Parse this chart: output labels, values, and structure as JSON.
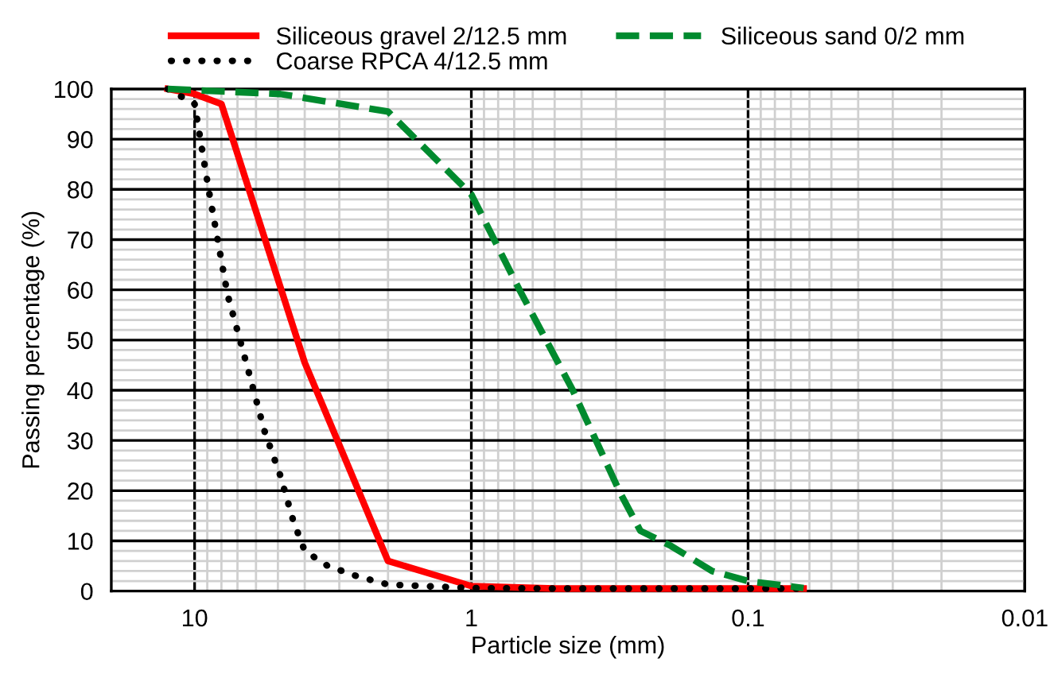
{
  "chart_data": {
    "type": "line",
    "xlabel": "Particle size (mm)",
    "ylabel": "Passing percentage (%)",
    "log": "x",
    "xlim": [
      20,
      0.01
    ],
    "xticks": [
      10,
      1,
      0.1,
      0.01
    ],
    "ylim": [
      0,
      100
    ],
    "yticks": [
      0,
      10,
      20,
      30,
      40,
      50,
      60,
      70,
      80,
      90,
      100
    ],
    "grid": true,
    "legend": "top",
    "series": [
      {
        "name": "Siliceous gravel 2/12.5 mm",
        "color": "#ff0000",
        "line_style": "solid",
        "x": [
          12.5,
          10,
          8,
          4,
          2,
          1,
          0.5,
          0.25,
          0.125,
          0.063
        ],
        "values": [
          100,
          99,
          97,
          45.5,
          6,
          1,
          0.5,
          0.5,
          0.5,
          0.5
        ]
      },
      {
        "name": "Coarse RPCA 4/12.5 mm",
        "color": "#000000",
        "line_style": "dotted",
        "x": [
          12.5,
          10,
          8.9,
          7.6,
          6.4,
          5.6,
          4.9,
          4.4,
          4,
          3.3,
          2.6,
          2,
          1,
          0.5,
          0.25,
          0.125,
          0.063
        ],
        "values": [
          100,
          97,
          80,
          59,
          44,
          32,
          23,
          14,
          8,
          5,
          3,
          1.3,
          0.6,
          0.5,
          0.5,
          0.5,
          0.5
        ]
      },
      {
        "name": "Siliceous sand 0/2 mm",
        "color": "#008a2e",
        "line_style": "dashed",
        "x": [
          12.5,
          4.9,
          2,
          1,
          0.67,
          0.43,
          0.29,
          0.245,
          0.19,
          0.135,
          0.1,
          0.063
        ],
        "values": [
          100,
          99,
          95.5,
          79,
          60,
          40,
          19.6,
          12,
          9,
          4,
          2,
          0.6
        ]
      }
    ]
  }
}
